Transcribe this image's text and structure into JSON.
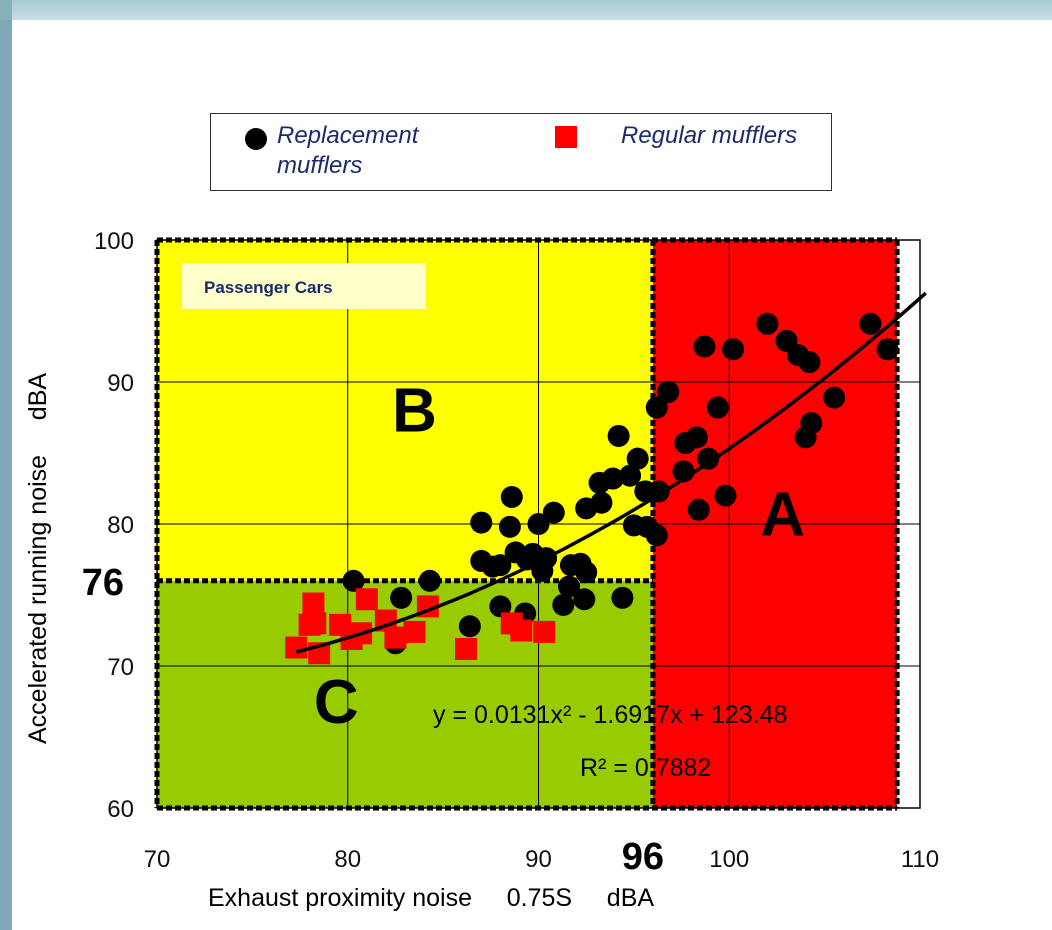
{
  "legend": {
    "series1_label": "Replacement mufflers",
    "series2_label": "Regular mufflers"
  },
  "chart_data": {
    "type": "scatter",
    "title": "",
    "xlabel": "Exhaust proximity noise     0.75S     dBA",
    "ylabel": "Accelerated running noise     dBA",
    "xlim": [
      70,
      110
    ],
    "ylim": [
      60,
      100
    ],
    "x_ticks": [
      "70",
      "80",
      "90",
      "100",
      "110"
    ],
    "y_ticks": [
      "60",
      "70",
      "80",
      "90",
      "100"
    ],
    "grid": true,
    "legend_position": "top",
    "thresholds": {
      "x": 96,
      "y": 76,
      "x_label": "96",
      "y_label": "76"
    },
    "zones": [
      {
        "label": "A",
        "color": "#ff0000"
      },
      {
        "label": "B",
        "color": "#ffff00"
      },
      {
        "label": "C",
        "color": "#99cc00"
      }
    ],
    "annotation_box": "Passenger Cars",
    "equation": "y = 0.0131x² - 1.6917x + 123.48",
    "r_squared": "R² = 0.7882",
    "trendline": {
      "a": 0.0131,
      "b": -1.6917,
      "c": 123.48,
      "x_start": 77.3,
      "x_end": 110.3
    },
    "series": [
      {
        "name": "Replacement mufflers",
        "color": "#000000",
        "marker": "circle",
        "points": [
          [
            80.3,
            76.0
          ],
          [
            82.5,
            71.6
          ],
          [
            82.8,
            74.8
          ],
          [
            84.3,
            76.0
          ],
          [
            86.4,
            72.8
          ],
          [
            87.0,
            80.1
          ],
          [
            87.0,
            77.4
          ],
          [
            87.6,
            77.0
          ],
          [
            88.0,
            74.2
          ],
          [
            88.0,
            77.1
          ],
          [
            88.5,
            79.8
          ],
          [
            88.6,
            81.9
          ],
          [
            88.8,
            78.0
          ],
          [
            89.3,
            73.7
          ],
          [
            89.4,
            77.5
          ],
          [
            89.7,
            77.9
          ],
          [
            90.0,
            80.0
          ],
          [
            90.2,
            76.7
          ],
          [
            90.4,
            77.6
          ],
          [
            90.8,
            80.8
          ],
          [
            91.3,
            74.3
          ],
          [
            91.6,
            75.6
          ],
          [
            91.7,
            77.1
          ],
          [
            92.2,
            77.2
          ],
          [
            92.4,
            74.7
          ],
          [
            92.5,
            76.6
          ],
          [
            92.5,
            81.1
          ],
          [
            93.2,
            82.9
          ],
          [
            93.3,
            81.5
          ],
          [
            93.9,
            83.2
          ],
          [
            94.2,
            86.2
          ],
          [
            94.4,
            74.8
          ],
          [
            94.8,
            83.4
          ],
          [
            95.0,
            79.9
          ],
          [
            95.2,
            84.6
          ],
          [
            95.6,
            82.3
          ],
          [
            95.7,
            79.8
          ],
          [
            96.2,
            79.2
          ],
          [
            96.2,
            88.2
          ],
          [
            96.3,
            82.3
          ],
          [
            96.8,
            89.3
          ],
          [
            97.6,
            83.7
          ],
          [
            97.7,
            85.7
          ],
          [
            98.3,
            86.1
          ],
          [
            98.4,
            81.0
          ],
          [
            98.7,
            92.5
          ],
          [
            98.9,
            84.6
          ],
          [
            99.4,
            88.2
          ],
          [
            99.8,
            82.0
          ],
          [
            100.2,
            92.3
          ],
          [
            102.0,
            94.1
          ],
          [
            103.0,
            92.9
          ],
          [
            103.6,
            91.9
          ],
          [
            104.0,
            86.1
          ],
          [
            104.2,
            91.4
          ],
          [
            104.3,
            87.1
          ],
          [
            105.5,
            88.9
          ],
          [
            107.4,
            94.1
          ],
          [
            108.3,
            92.3
          ]
        ]
      },
      {
        "name": "Regular mufflers",
        "color": "#ff0000",
        "marker": "square",
        "points": [
          [
            77.3,
            71.3
          ],
          [
            78.0,
            72.9
          ],
          [
            78.2,
            74.4
          ],
          [
            78.3,
            73.0
          ],
          [
            78.5,
            70.9
          ],
          [
            79.6,
            72.9
          ],
          [
            80.2,
            71.9
          ],
          [
            80.7,
            72.3
          ],
          [
            81.0,
            74.7
          ],
          [
            82.0,
            73.2
          ],
          [
            82.5,
            72.0
          ],
          [
            83.5,
            72.4
          ],
          [
            84.2,
            74.2
          ],
          [
            86.2,
            71.2
          ],
          [
            88.6,
            73.0
          ],
          [
            89.1,
            72.5
          ],
          [
            90.3,
            72.4
          ]
        ]
      }
    ]
  }
}
